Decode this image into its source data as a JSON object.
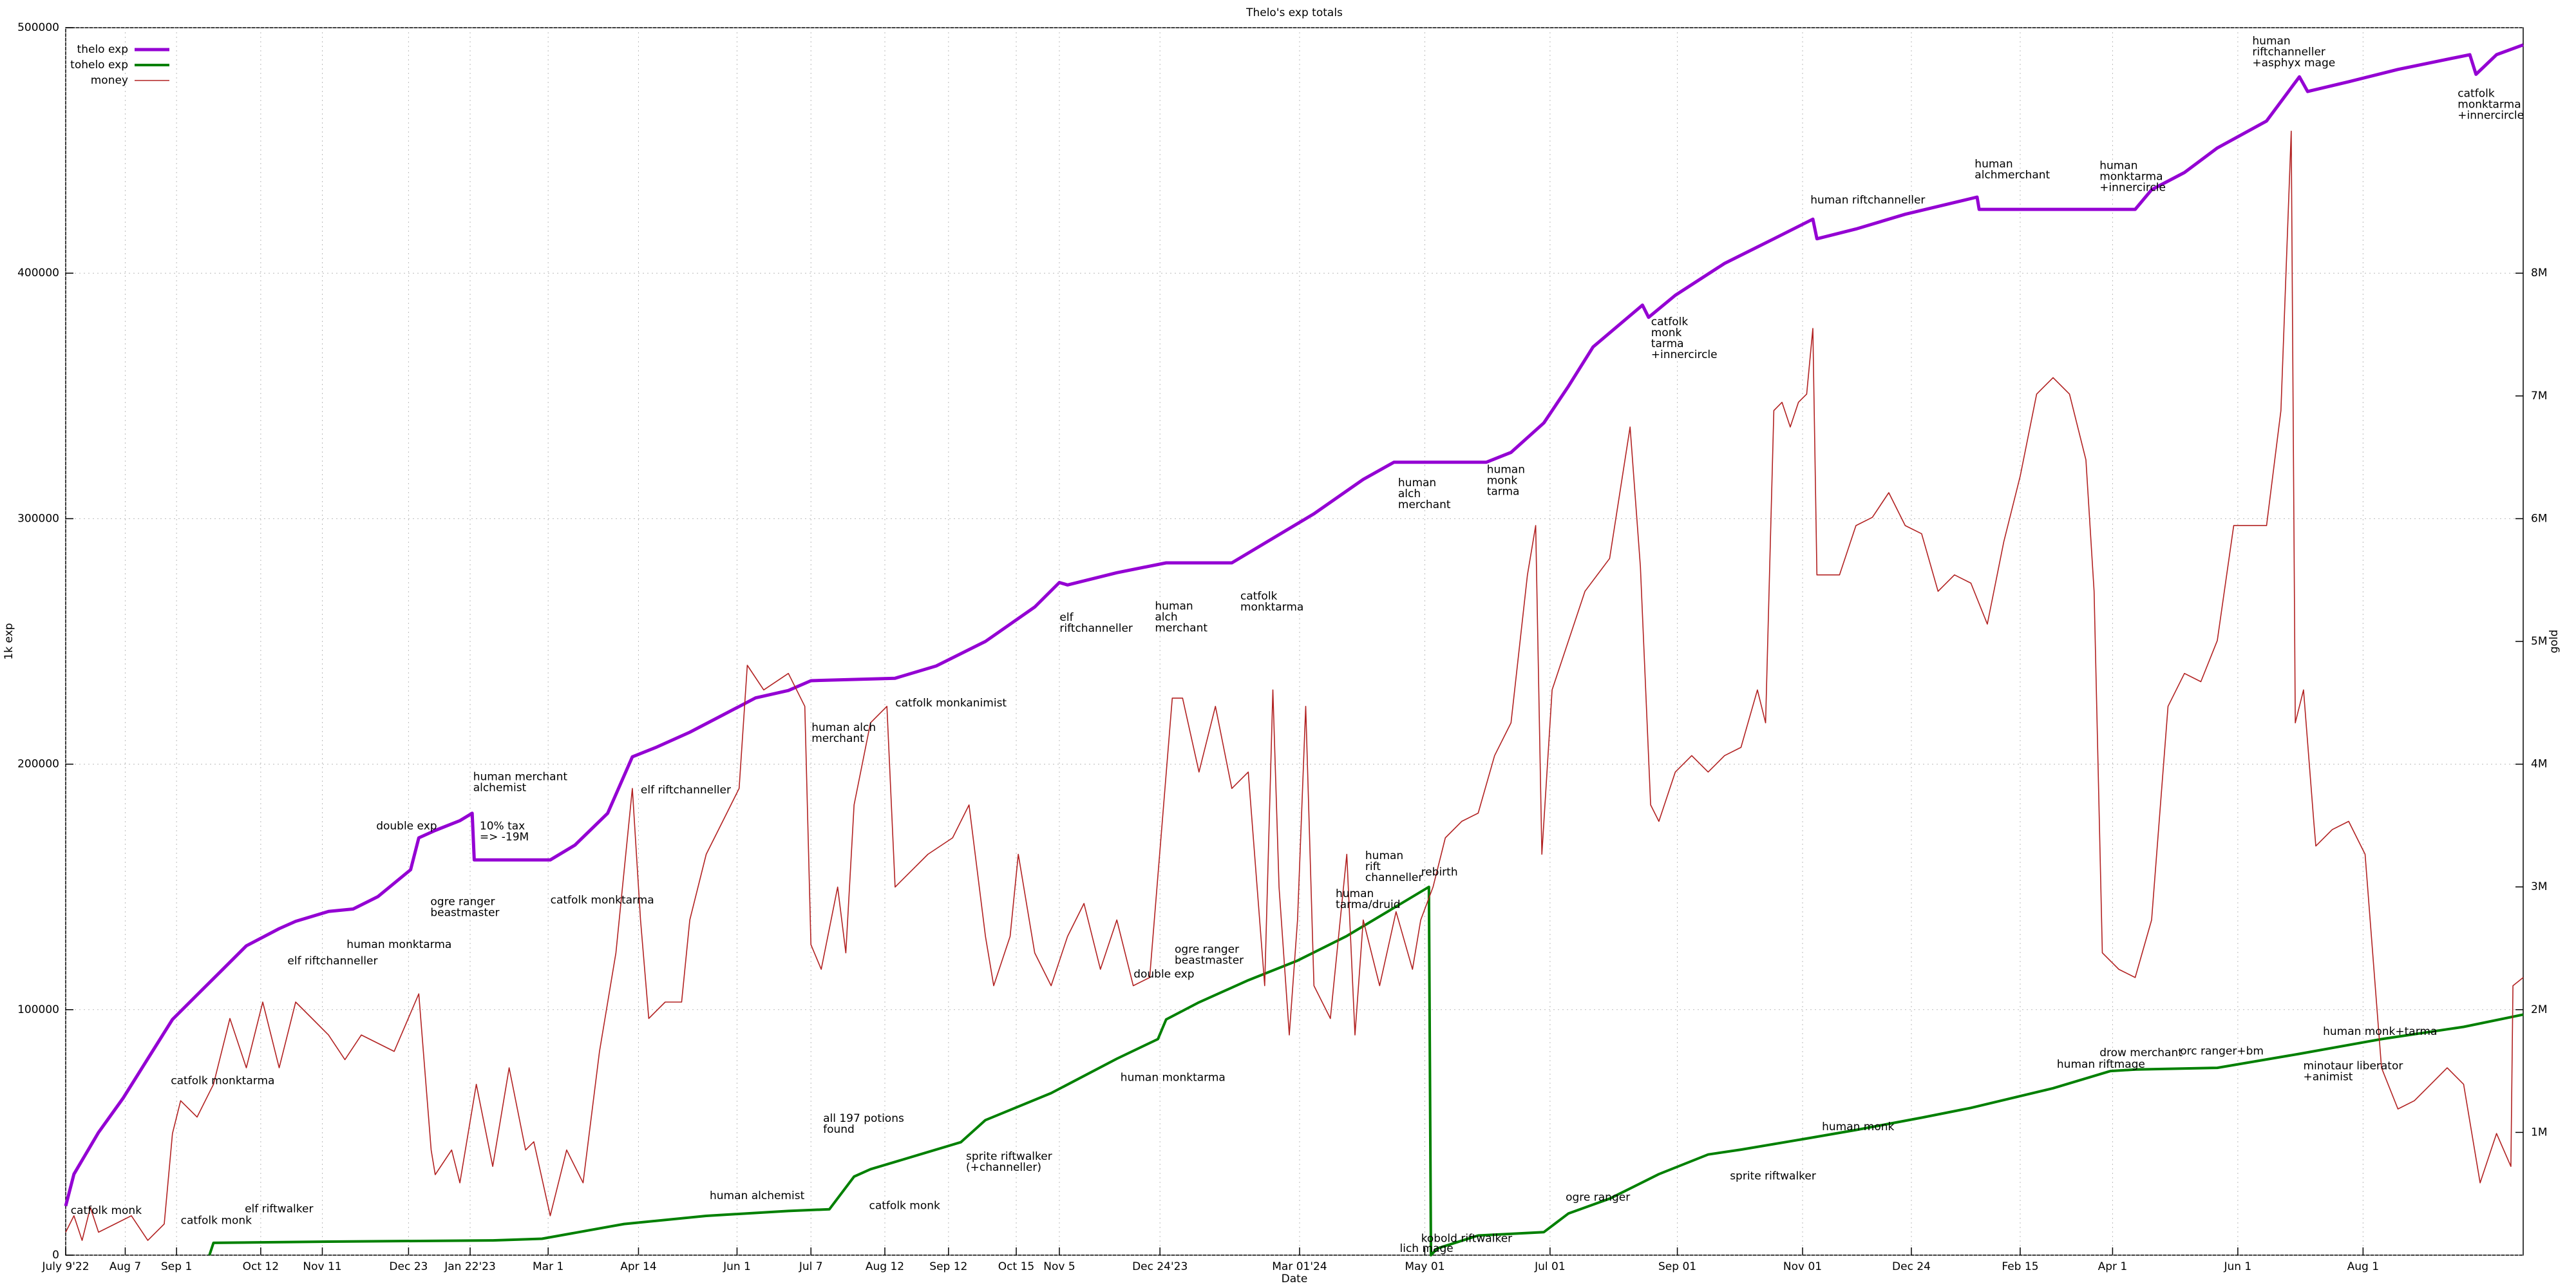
{
  "chart_data": {
    "type": "line",
    "title": "Thelo's exp totals",
    "xlabel": "Date",
    "ylabel": "1k exp",
    "y2label": "gold",
    "grid": true,
    "legend": "top left",
    "xlim": [
      0,
      1197
    ],
    "xticks": [
      {
        "value": 0,
        "label": "July 9'22"
      },
      {
        "value": 29,
        "label": "Aug 7"
      },
      {
        "value": 54,
        "label": "Sep 1"
      },
      {
        "value": 95,
        "label": "Oct 12"
      },
      {
        "value": 125,
        "label": "Nov 11"
      },
      {
        "value": 167,
        "label": "Dec 23"
      },
      {
        "value": 197,
        "label": "Jan 22'23"
      },
      {
        "value": 235,
        "label": "Mar 1"
      },
      {
        "value": 279,
        "label": "Apr 14"
      },
      {
        "value": 327,
        "label": "Jun 1"
      },
      {
        "value": 363,
        "label": "Jul 7"
      },
      {
        "value": 399,
        "label": "Aug 12"
      },
      {
        "value": 430,
        "label": "Sep 12"
      },
      {
        "value": 463,
        "label": "Oct 15"
      },
      {
        "value": 484,
        "label": "Nov 5"
      },
      {
        "value": 533,
        "label": "Dec 24'23"
      },
      {
        "value": 601,
        "label": "Mar 01'24"
      },
      {
        "value": 662,
        "label": "May 01"
      },
      {
        "value": 723,
        "label": "Jul 01"
      },
      {
        "value": 785,
        "label": "Sep 01"
      },
      {
        "value": 846,
        "label": "Nov 01"
      },
      {
        "value": 899,
        "label": "Dec 24"
      },
      {
        "value": 952,
        "label": "Feb 15"
      },
      {
        "value": 997,
        "label": "Apr 1"
      },
      {
        "value": 1058,
        "label": "Jun 1"
      },
      {
        "value": 1119,
        "label": "Aug 1"
      }
    ],
    "ylim": [
      0,
      500000
    ],
    "yticks": [
      0,
      100000,
      200000,
      300000,
      400000,
      500000
    ],
    "y2lim": [
      0,
      10000000
    ],
    "y2ticks": [
      {
        "value": 1000000,
        "label": "1M"
      },
      {
        "value": 2000000,
        "label": "2M"
      },
      {
        "value": 3000000,
        "label": "3M"
      },
      {
        "value": 4000000,
        "label": "4M"
      },
      {
        "value": 5000000,
        "label": "5M"
      },
      {
        "value": 6000000,
        "label": "6M"
      },
      {
        "value": 7000000,
        "label": "7M"
      },
      {
        "value": 8000000,
        "label": "8M"
      }
    ],
    "series": [
      {
        "name": "thelo exp",
        "color": "#9400d3",
        "width": 5,
        "x": [
          0,
          4,
          16,
          28,
          40,
          52,
          64,
          76,
          88,
          104,
          112,
          128,
          140,
          152,
          168,
          172,
          180,
          192,
          198,
          199,
          236,
          248,
          264,
          276,
          288,
          304,
          320,
          336,
          352,
          363,
          404,
          424,
          448,
          472,
          484,
          488,
          512,
          536,
          568,
          584,
          608,
          632,
          647,
          664,
          692,
          704,
          720,
          732,
          744,
          768,
          771,
          784,
          808,
          832,
          851,
          853,
          872,
          896,
          931,
          932,
          1008,
          1016,
          1032,
          1048,
          1072,
          1088,
          1092,
          1112,
          1136,
          1171,
          1174,
          1184,
          1197
        ],
        "values": [
          20000,
          33000,
          50000,
          64000,
          80000,
          96000,
          106000,
          116000,
          126000,
          133000,
          136000,
          140000,
          141000,
          146000,
          157000,
          170000,
          173000,
          177000,
          180000,
          161000,
          161000,
          167000,
          180000,
          203000,
          207000,
          213000,
          220000,
          227000,
          230000,
          234000,
          235000,
          240000,
          250000,
          264000,
          274000,
          273000,
          278000,
          282000,
          282000,
          290000,
          302000,
          316000,
          323000,
          323000,
          323000,
          327000,
          339000,
          354000,
          370000,
          387000,
          382000,
          391000,
          404000,
          414000,
          422000,
          414000,
          418000,
          424000,
          431000,
          426000,
          426000,
          434000,
          441000,
          451000,
          462000,
          480000,
          474000,
          478000,
          483000,
          489000,
          481000,
          489000,
          493000
        ]
      },
      {
        "name": "tohelo exp",
        "color": "#008000",
        "width": 4,
        "x": [
          70,
          72,
          128,
          208,
          232,
          272,
          312,
          352,
          372,
          384,
          392,
          416,
          436,
          448,
          480,
          512,
          532,
          536,
          552,
          576,
          600,
          624,
          648,
          664,
          665,
          668,
          688,
          720,
          732,
          752,
          776,
          800,
          816,
          848,
          872,
          904,
          928,
          968,
          996,
          1008,
          1048,
          1088,
          1128,
          1168,
          1197
        ],
        "values": [
          0,
          5000,
          5500,
          6000,
          6700,
          12700,
          16000,
          18000,
          18700,
          32000,
          35000,
          41000,
          46000,
          55000,
          66000,
          80000,
          88000,
          96000,
          103000,
          112000,
          120000,
          130000,
          142000,
          150000,
          0,
          2700,
          8000,
          9400,
          17000,
          23000,
          33000,
          41000,
          43000,
          47500,
          51000,
          56000,
          60000,
          68000,
          75000,
          75600,
          76300,
          82000,
          88000,
          93000,
          98000
        ]
      },
      {
        "name": "money",
        "color": "#b22222",
        "width": 1.6,
        "axis": "y2",
        "x": [
          0,
          4,
          8,
          12,
          16,
          24,
          32,
          40,
          48,
          52,
          56,
          64,
          72,
          80,
          88,
          96,
          104,
          112,
          120,
          128,
          136,
          144,
          160,
          172,
          178,
          180,
          188,
          192,
          200,
          208,
          216,
          224,
          228,
          236,
          244,
          252,
          260,
          268,
          276,
          280,
          284,
          292,
          300,
          304,
          312,
          320,
          328,
          332,
          340,
          352,
          360,
          363,
          368,
          376,
          380,
          384,
          392,
          400,
          404,
          412,
          420,
          432,
          440,
          448,
          452,
          460,
          464,
          472,
          480,
          488,
          496,
          504,
          512,
          520,
          528,
          539,
          544,
          552,
          560,
          568,
          576,
          584,
          588,
          591,
          596,
          600,
          604,
          608,
          616,
          624,
          628,
          632,
          640,
          648,
          656,
          660,
          666,
          672,
          680,
          688,
          696,
          704,
          712,
          716,
          719,
          724,
          732,
          740,
          752,
          762,
          767,
          772,
          776,
          784,
          792,
          800,
          808,
          816,
          824,
          828,
          832,
          836,
          840,
          844,
          848,
          851,
          853,
          864,
          872,
          880,
          888,
          896,
          904,
          912,
          920,
          928,
          936,
          944,
          952,
          960,
          968,
          976,
          984,
          988,
          992,
          1000,
          1008,
          1016,
          1024,
          1032,
          1040,
          1048,
          1056,
          1064,
          1072,
          1079,
          1084,
          1086,
          1090,
          1095,
          1096,
          1104,
          1112,
          1120,
          1128,
          1136,
          1144,
          1152,
          1160,
          1168,
          1176,
          1184,
          1191,
          1192,
          1197
        ],
        "values": [
          187000,
          321000,
          120000,
          388000,
          187000,
          254000,
          321000,
          120000,
          254000,
          991000,
          1258000,
          1125000,
          1392000,
          1928000,
          1526000,
          2062000,
          1526000,
          2062000,
          1928000,
          1794000,
          1593000,
          1794000,
          1660000,
          2129000,
          857000,
          656000,
          857000,
          589000,
          1392000,
          723000,
          1526000,
          857000,
          924000,
          321000,
          857000,
          589000,
          1660000,
          2463000,
          3802000,
          2731000,
          1928000,
          2062000,
          2062000,
          2731000,
          3266000,
          3534000,
          3802000,
          4806000,
          4605000,
          4739000,
          4471000,
          2530000,
          2329000,
          2999000,
          2463000,
          3668000,
          4337000,
          4471000,
          2999000,
          3133000,
          3266000,
          3400000,
          3668000,
          2597000,
          2195000,
          2597000,
          3266000,
          2463000,
          2195000,
          2597000,
          2865000,
          2329000,
          2731000,
          2195000,
          2262000,
          4538000,
          4538000,
          3936000,
          4471000,
          3802000,
          3936000,
          2195000,
          4605000,
          2999000,
          1794000,
          2731000,
          4471000,
          2195000,
          1928000,
          3266000,
          1794000,
          2731000,
          2195000,
          2798000,
          2329000,
          2731000,
          2999000,
          3400000,
          3534000,
          3601000,
          4070000,
          4337000,
          5542000,
          5944000,
          3266000,
          4605000,
          5007000,
          5408000,
          5676000,
          6747000,
          5609000,
          3668000,
          3534000,
          3936000,
          4070000,
          3936000,
          4070000,
          4137000,
          4605000,
          4337000,
          6881000,
          6948000,
          6747000,
          6948000,
          7015000,
          7550000,
          5542000,
          5542000,
          5944000,
          6011000,
          6212000,
          5944000,
          5877000,
          5408000,
          5542000,
          5475000,
          5141000,
          5810000,
          6345000,
          7015000,
          7149000,
          7015000,
          6479000,
          5408000,
          2463000,
          2329000,
          2262000,
          2731000,
          4471000,
          4739000,
          4672000,
          5007000,
          5944000,
          5944000,
          5944000,
          6881000,
          9157000,
          4337000,
          4605000,
          3534000,
          3333000,
          3467000,
          3534000,
          3266000,
          1526000,
          1191000,
          1258000,
          1392000,
          1526000,
          1392000,
          589000,
          991000,
          723000,
          2195000,
          2262000
        ]
      }
    ],
    "annotations": [
      [
        "catfolk monk"
      ],
      [
        "catfolk monk"
      ],
      [
        "elf riftwalker"
      ],
      [
        "catfolk monktarma"
      ],
      [
        "elf riftchanneller"
      ],
      [
        "human monktarma"
      ],
      [
        "double exp"
      ],
      [
        "ogre ranger",
        "beastmaster"
      ],
      [
        "human merchant",
        "alchemist"
      ],
      [
        "10% tax",
        "=> -19M"
      ],
      [
        "catfolk monktarma"
      ],
      [
        "elf riftchanneller"
      ],
      [
        "human alchemist"
      ],
      [
        "human alch",
        "merchant"
      ],
      [
        "catfolk monkanimist"
      ],
      [
        "all 197 potions",
        "found"
      ],
      [
        "catfolk monk"
      ],
      [
        "sprite riftwalker",
        "(+channeller)"
      ],
      [
        "elf",
        "riftchanneller"
      ],
      [
        "human",
        "alch",
        "merchant"
      ],
      [
        "catfolk",
        "monktarma"
      ],
      [
        "double exp"
      ],
      [
        "ogre ranger",
        "beastmaster"
      ],
      [
        "human monktarma"
      ],
      [
        "human",
        "tarma/druid"
      ],
      [
        "human",
        "rift",
        "channeller"
      ],
      [
        "rebirth"
      ],
      [
        "human",
        "alch",
        "merchant"
      ],
      [
        "human",
        "monk",
        "tarma"
      ],
      [
        "lich mage"
      ],
      [
        "kobold riftwalker"
      ],
      [
        "ogre ranger"
      ],
      [
        "sprite riftwalker"
      ],
      [
        "human monk"
      ],
      [
        "catfolk",
        "monk",
        "tarma",
        "+innercircle"
      ],
      [
        "human riftchanneller"
      ],
      [
        "human",
        "alchmerchant"
      ],
      [
        "human",
        "monktarma",
        "+innercircle"
      ],
      [
        "human riftmage"
      ],
      [
        "drow merchant"
      ],
      [
        "orc ranger+bm"
      ],
      [
        "human monk+tarma"
      ],
      [
        "minotaur liberator",
        "+animist"
      ],
      [
        "human",
        "riftchanneller",
        "+asphyx mage"
      ],
      [
        "catfolk",
        "monktarma",
        "+innercircle"
      ]
    ]
  }
}
